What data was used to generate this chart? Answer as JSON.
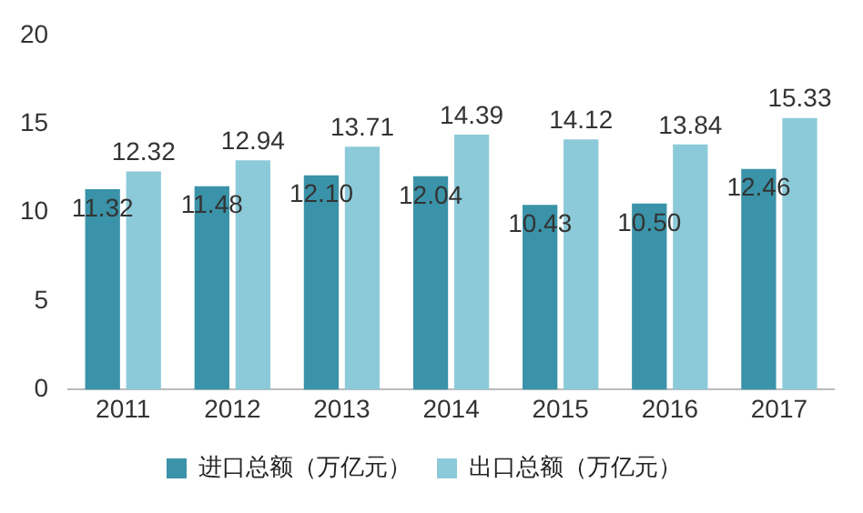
{
  "chart_data": {
    "type": "bar",
    "categories": [
      "2011",
      "2012",
      "2013",
      "2014",
      "2015",
      "2016",
      "2017"
    ],
    "series": [
      {
        "name": "进口总额（万亿元）",
        "color": "#3a93a8",
        "values": [
          11.32,
          11.48,
          12.1,
          12.04,
          10.43,
          10.5,
          12.46
        ],
        "value_labels": [
          "11.32",
          "11.48",
          "12.10",
          "12.04",
          "10.43",
          "10.50",
          "12.46"
        ]
      },
      {
        "name": "出口总额（万亿元）",
        "color": "#8ccad9",
        "values": [
          12.32,
          12.94,
          13.71,
          14.39,
          14.12,
          13.84,
          15.33
        ],
        "value_labels": [
          "12.32",
          "12.94",
          "13.71",
          "14.39",
          "14.12",
          "13.84",
          "15.33"
        ]
      }
    ],
    "ylim": [
      0,
      20
    ],
    "yticks": [
      0,
      5,
      10,
      15,
      20
    ],
    "grid": false,
    "legend": "bottom"
  }
}
